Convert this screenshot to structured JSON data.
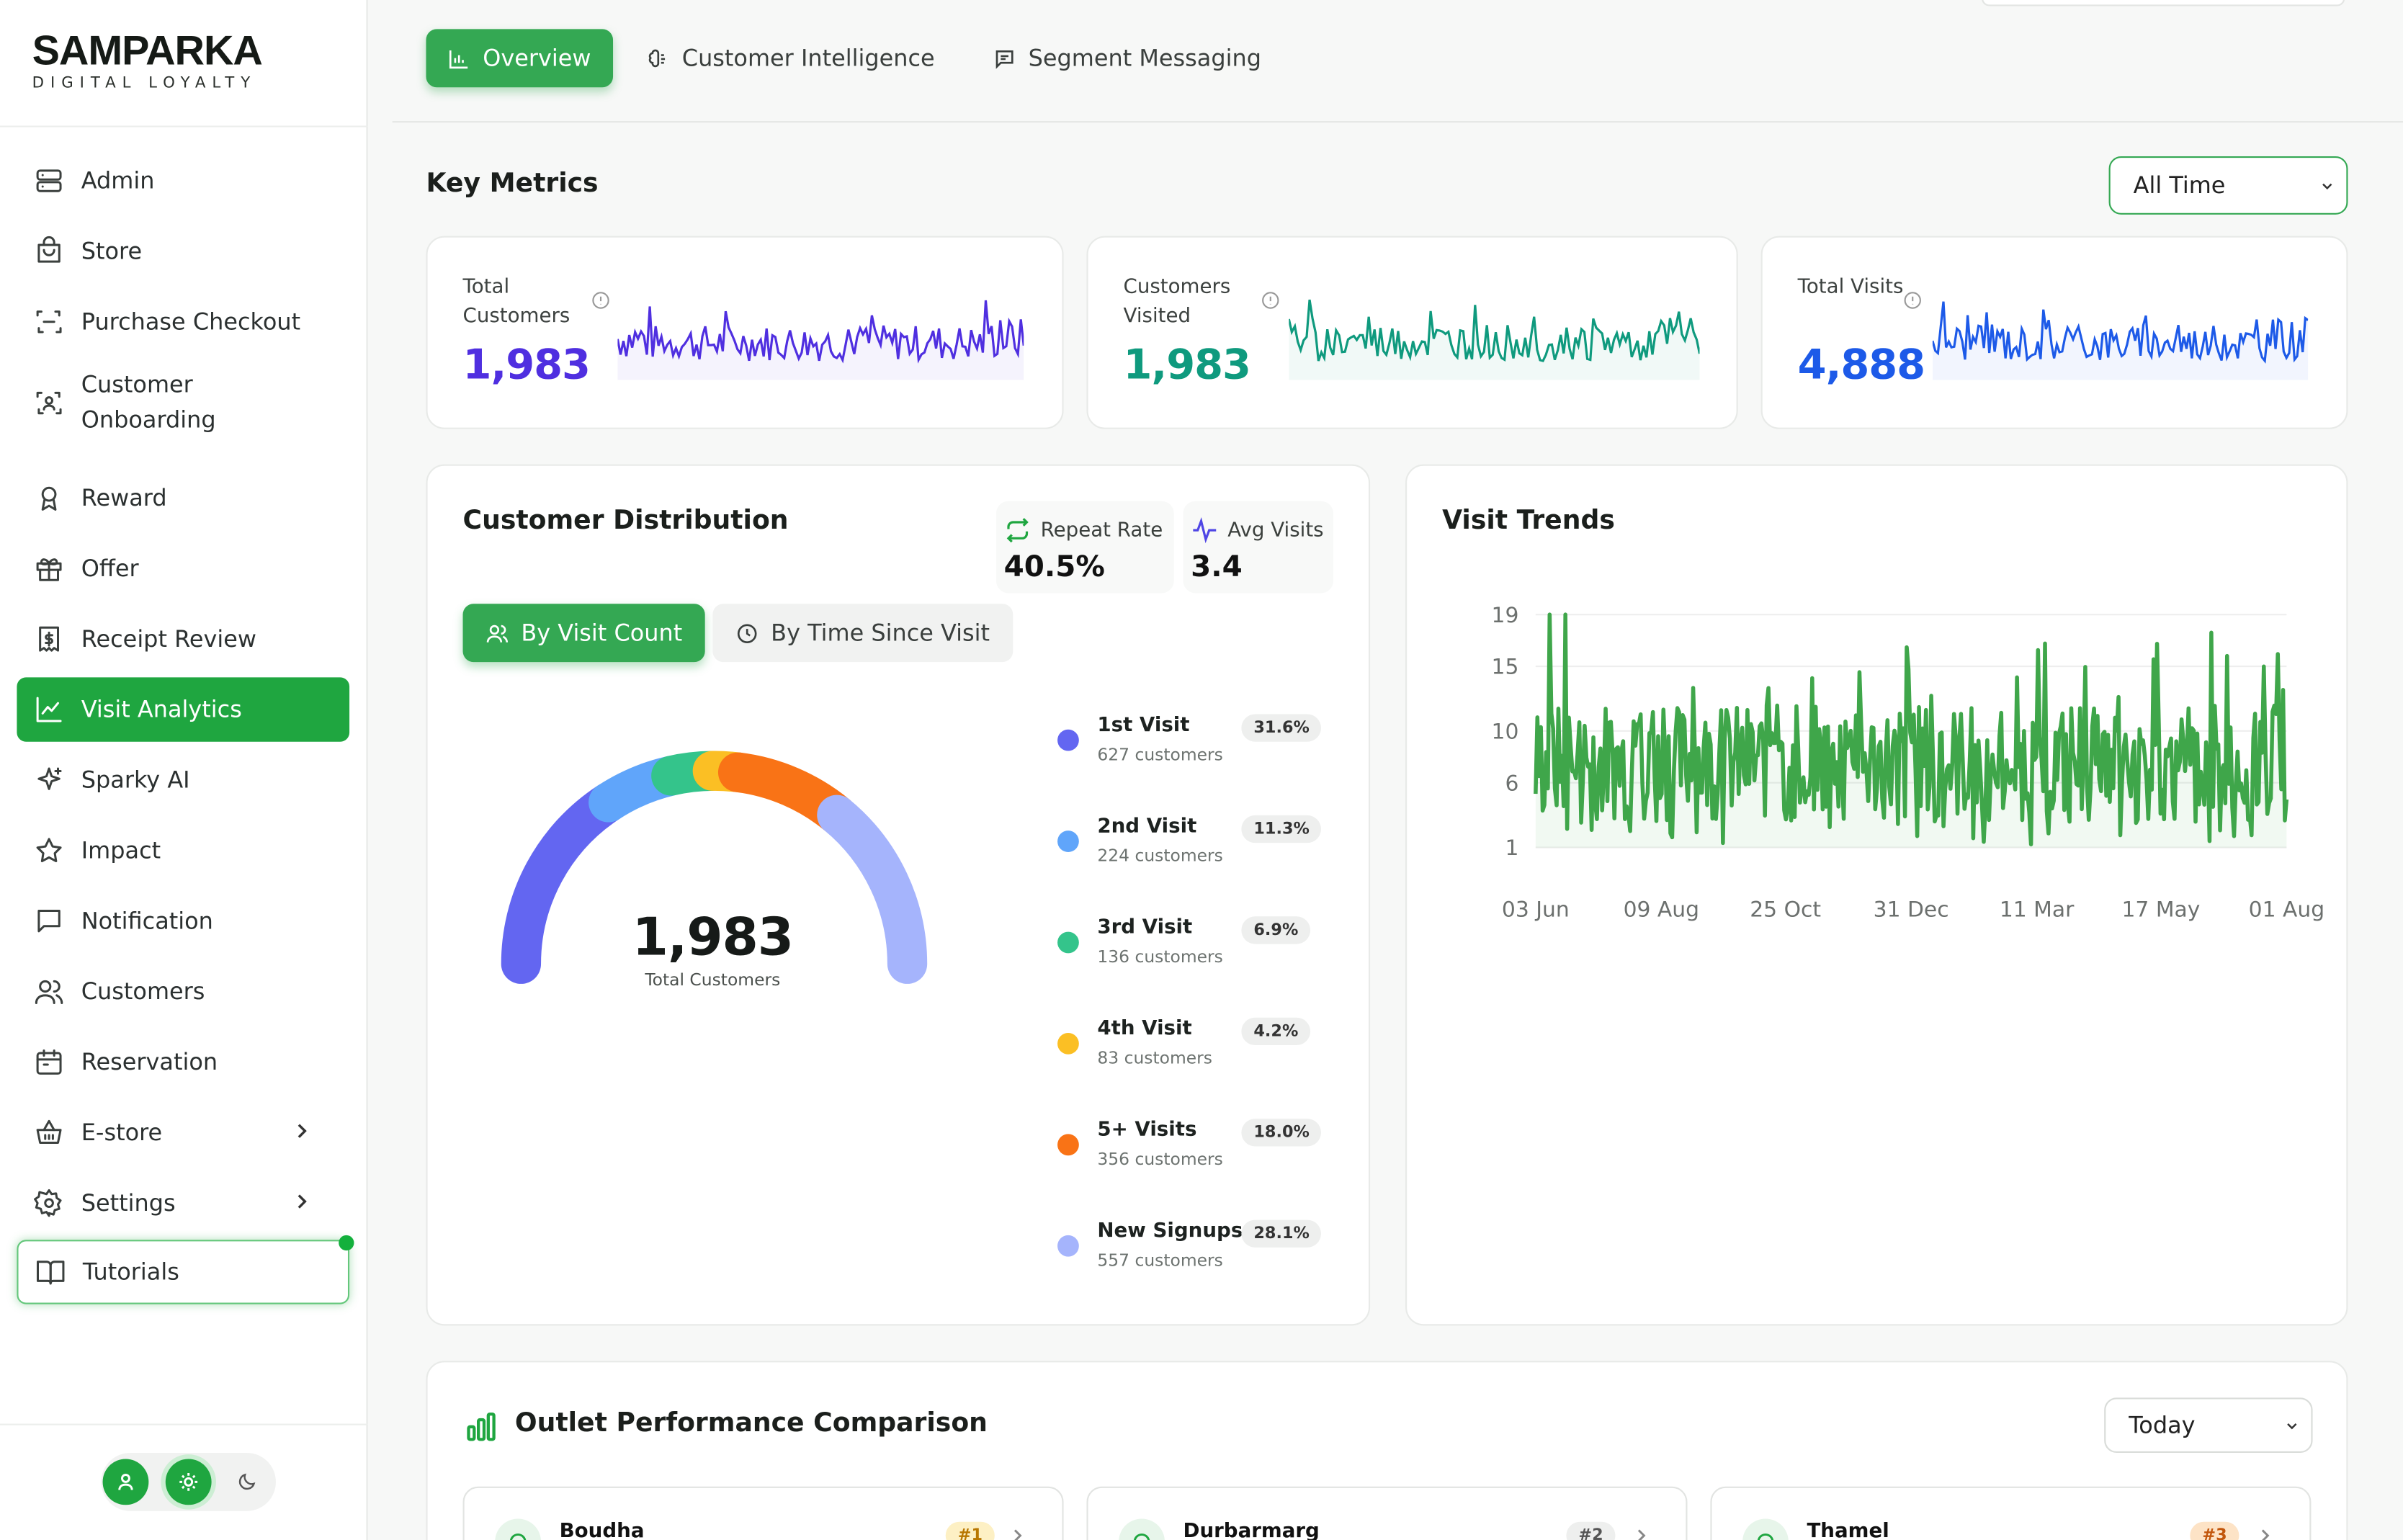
{
  "brand": {
    "name": "SAMPARKA",
    "tagline": "DIGITAL LOYALTY"
  },
  "sidebar": {
    "items": [
      {
        "label": "Admin",
        "icon": "server-icon"
      },
      {
        "label": "Store",
        "icon": "store-icon"
      },
      {
        "label": "Purchase Checkout",
        "icon": "scan-icon"
      },
      {
        "label": "Customer Onboarding",
        "icon": "scan-user-icon"
      },
      {
        "label": "Reward",
        "icon": "award-icon"
      },
      {
        "label": "Offer",
        "icon": "gift-icon"
      },
      {
        "label": "Receipt Review",
        "icon": "receipt-icon"
      },
      {
        "label": "Visit Analytics",
        "icon": "chart-icon",
        "active": true
      },
      {
        "label": "Sparky AI",
        "icon": "sparkles-icon"
      },
      {
        "label": "Impact",
        "icon": "star-icon"
      },
      {
        "label": "Notification",
        "icon": "message-icon"
      },
      {
        "label": "Customers",
        "icon": "users-icon"
      },
      {
        "label": "Reservation",
        "icon": "calendar-icon"
      },
      {
        "label": "E-store",
        "icon": "basket-icon",
        "has_submenu": true
      },
      {
        "label": "Settings",
        "icon": "gear-icon",
        "has_submenu": true
      },
      {
        "label": "Tutorials",
        "icon": "book-icon",
        "highlight": true
      }
    ]
  },
  "tabs": [
    {
      "label": "Overview",
      "icon": "bar-chart-icon",
      "active": true
    },
    {
      "label": "Customer Intelligence",
      "icon": "brain-icon"
    },
    {
      "label": "Segment Messaging",
      "icon": "message-square-icon"
    }
  ],
  "key_metrics": {
    "title": "Key Metrics",
    "range": "All Time",
    "cards": [
      {
        "label": "Total Customers",
        "value": "1,983",
        "color": "#4f2fe0"
      },
      {
        "label": "Customers Visited",
        "value": "1,983",
        "color": "#0f9a7e"
      },
      {
        "label": "Total Visits",
        "value": "4,888",
        "color": "#1d5ae8"
      }
    ]
  },
  "distribution": {
    "title": "Customer Distribution",
    "repeat_rate_label": "Repeat Rate",
    "repeat_rate": "40.5%",
    "avg_visits_label": "Avg Visits",
    "avg_visits": "3.4",
    "btn_by_count": "By Visit Count",
    "btn_by_time": "By Time Since Visit",
    "total": "1,983",
    "total_label": "Total Customers",
    "legend": [
      {
        "name": "1st Visit",
        "customers": "627 customers",
        "pct": "31.6%",
        "color": "#6366f1"
      },
      {
        "name": "2nd Visit",
        "customers": "224 customers",
        "pct": "11.3%",
        "color": "#60a5fa"
      },
      {
        "name": "3rd Visit",
        "customers": "136 customers",
        "pct": "6.9%",
        "color": "#34c48b"
      },
      {
        "name": "4th Visit",
        "customers": "83 customers",
        "pct": "4.2%",
        "color": "#fbbf24"
      },
      {
        "name": "5+ Visits",
        "customers": "356 customers",
        "pct": "18.0%",
        "color": "#f97316"
      },
      {
        "name": "New Signups",
        "customers": "557 customers",
        "pct": "28.1%",
        "color": "#a5b4fc"
      }
    ]
  },
  "chart_data": {
    "type": "line",
    "title": "Visit Trends",
    "x_ticks": [
      "03 Jun",
      "09 Aug",
      "25 Oct",
      "31 Dec",
      "11 Mar",
      "17 May",
      "01 Aug"
    ],
    "y_ticks": [
      "19",
      "15",
      "10",
      "6",
      "1"
    ],
    "ylim": [
      1,
      19
    ],
    "color": "#3fa64a"
  },
  "outlets": {
    "title": "Outlet Performance Comparison",
    "range": "Today",
    "items": [
      {
        "name": "Boudha",
        "rank": "#1"
      },
      {
        "name": "Durbarmarg",
        "rank": "#2"
      },
      {
        "name": "Thamel",
        "rank": "#3"
      }
    ]
  }
}
